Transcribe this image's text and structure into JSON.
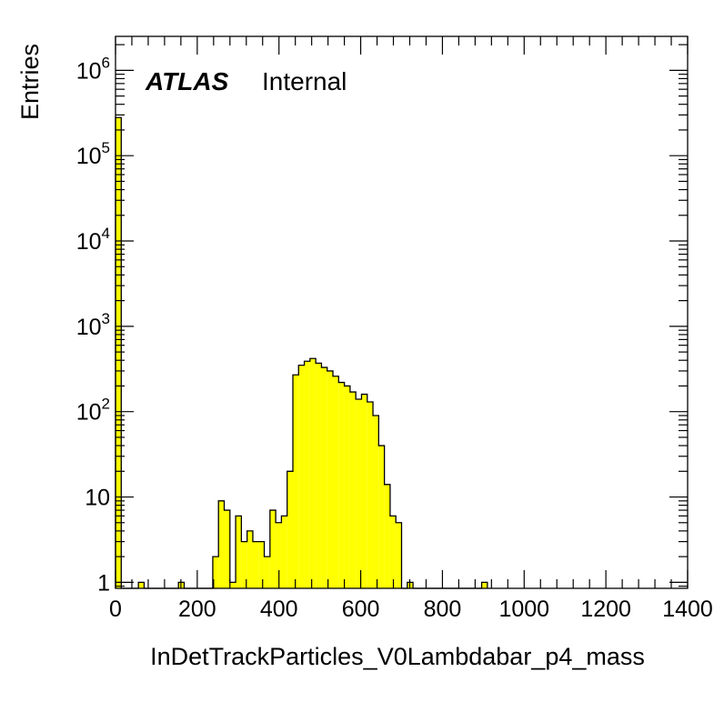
{
  "chart_data": {
    "type": "bar",
    "title": "",
    "xlabel": "InDetTrackParticles_V0Lambdabar_p4_mass",
    "ylabel": "Entries",
    "label_atlas": "ATLAS",
    "label_status": "Internal",
    "xlim": [
      0,
      1400
    ],
    "ylim": [
      0.85,
      2500000
    ],
    "yscale": "log",
    "bin_width": 14,
    "fill_color": "#ffff00",
    "line_color": "#000000",
    "x_ticks": [
      "0",
      "200",
      "400",
      "600",
      "800",
      "1000",
      "1200",
      "1400"
    ],
    "y_ticks": [
      {
        "base": "1",
        "exp": ""
      },
      {
        "base": "10",
        "exp": ""
      },
      {
        "base": "10",
        "exp": "2"
      },
      {
        "base": "10",
        "exp": "3"
      },
      {
        "base": "10",
        "exp": "4"
      },
      {
        "base": "10",
        "exp": "5"
      },
      {
        "base": "10",
        "exp": "6"
      }
    ],
    "bin_edges_start": [
      0,
      14,
      28,
      42,
      56,
      70,
      84,
      98,
      112,
      126,
      140,
      154,
      168,
      182,
      196,
      210,
      224,
      238,
      252,
      266,
      280,
      294,
      308,
      322,
      336,
      350,
      364,
      378,
      392,
      406,
      420,
      434,
      448,
      462,
      476,
      490,
      504,
      518,
      532,
      546,
      560,
      574,
      588,
      602,
      616,
      630,
      644,
      658,
      672,
      686,
      700,
      714,
      728,
      742,
      756,
      770,
      784,
      798,
      812,
      826,
      840,
      854,
      868,
      882,
      896
    ],
    "values": [
      280000,
      0,
      0,
      0,
      1,
      0,
      0,
      0,
      0,
      0,
      0,
      1,
      0,
      0,
      0,
      0,
      0,
      2,
      9,
      7,
      1,
      6,
      3,
      4,
      3,
      3,
      2,
      7,
      5,
      6,
      20,
      270,
      350,
      390,
      420,
      370,
      330,
      300,
      260,
      220,
      200,
      170,
      140,
      160,
      130,
      90,
      40,
      14,
      6,
      5,
      0,
      1,
      0,
      0,
      0,
      0,
      0,
      0,
      0,
      0,
      0,
      0,
      0,
      0,
      1
    ]
  }
}
